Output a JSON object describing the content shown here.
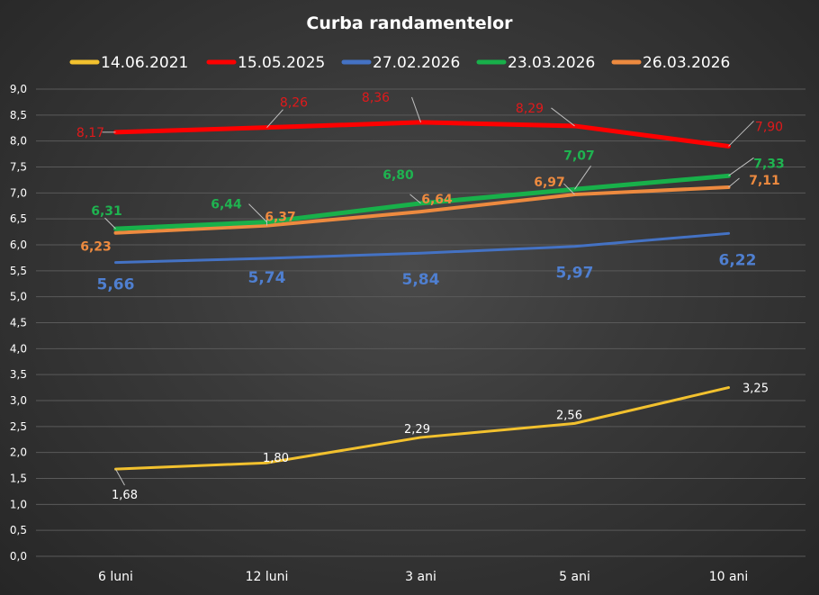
{
  "chart_data": {
    "type": "line",
    "title": "Curba randamentelor",
    "xlabel": "",
    "ylabel": "",
    "categories": [
      "6 luni",
      "12 luni",
      "3 ani",
      "5 ani",
      "10 ani"
    ],
    "ylim": [
      0,
      9
    ],
    "yticks": [
      "0,0",
      "0,5",
      "1,0",
      "1,5",
      "2,0",
      "2,5",
      "3,0",
      "3,5",
      "4,0",
      "4,5",
      "5,0",
      "5,5",
      "6,0",
      "6,5",
      "7,0",
      "7,5",
      "8,0",
      "8,5",
      "9,0"
    ],
    "grid": true,
    "legend_position": "top",
    "series": [
      {
        "name": "14.06.2021",
        "color": "#f2c12e",
        "values": [
          1.68,
          1.8,
          2.29,
          2.56,
          3.25
        ],
        "labels": [
          "1,68",
          "1,80",
          "2,29",
          "2,56",
          "3,25"
        ],
        "label_color": "#ffffff"
      },
      {
        "name": "15.05.2025",
        "color": "#ff0000",
        "values": [
          8.17,
          8.26,
          8.36,
          8.29,
          7.9
        ],
        "labels": [
          "8,17",
          "8,26",
          "8,36",
          "8,29",
          "7,90"
        ],
        "label_color": "#e0191b"
      },
      {
        "name": "27.02.2026",
        "color": "#4472c4",
        "values": [
          5.66,
          5.74,
          5.84,
          5.97,
          6.22
        ],
        "labels": [
          "5,66",
          "5,74",
          "5,84",
          "5,97",
          "6,22"
        ],
        "label_color": "#4f7fd0"
      },
      {
        "name": "23.03.2026",
        "color": "#18b04a",
        "values": [
          6.31,
          6.44,
          6.8,
          7.07,
          7.33
        ],
        "labels": [
          "6,31",
          "6,44",
          "6,80",
          "7,07",
          "7,33"
        ],
        "label_color": "#1fb350"
      },
      {
        "name": "26.03.2026",
        "color": "#ed8a3f",
        "values": [
          6.23,
          6.37,
          6.64,
          6.97,
          7.11
        ],
        "labels": [
          "6,23",
          "6,37",
          "6,64",
          "6,97",
          "7,11"
        ],
        "label_color": "#ed8a3f"
      }
    ]
  }
}
